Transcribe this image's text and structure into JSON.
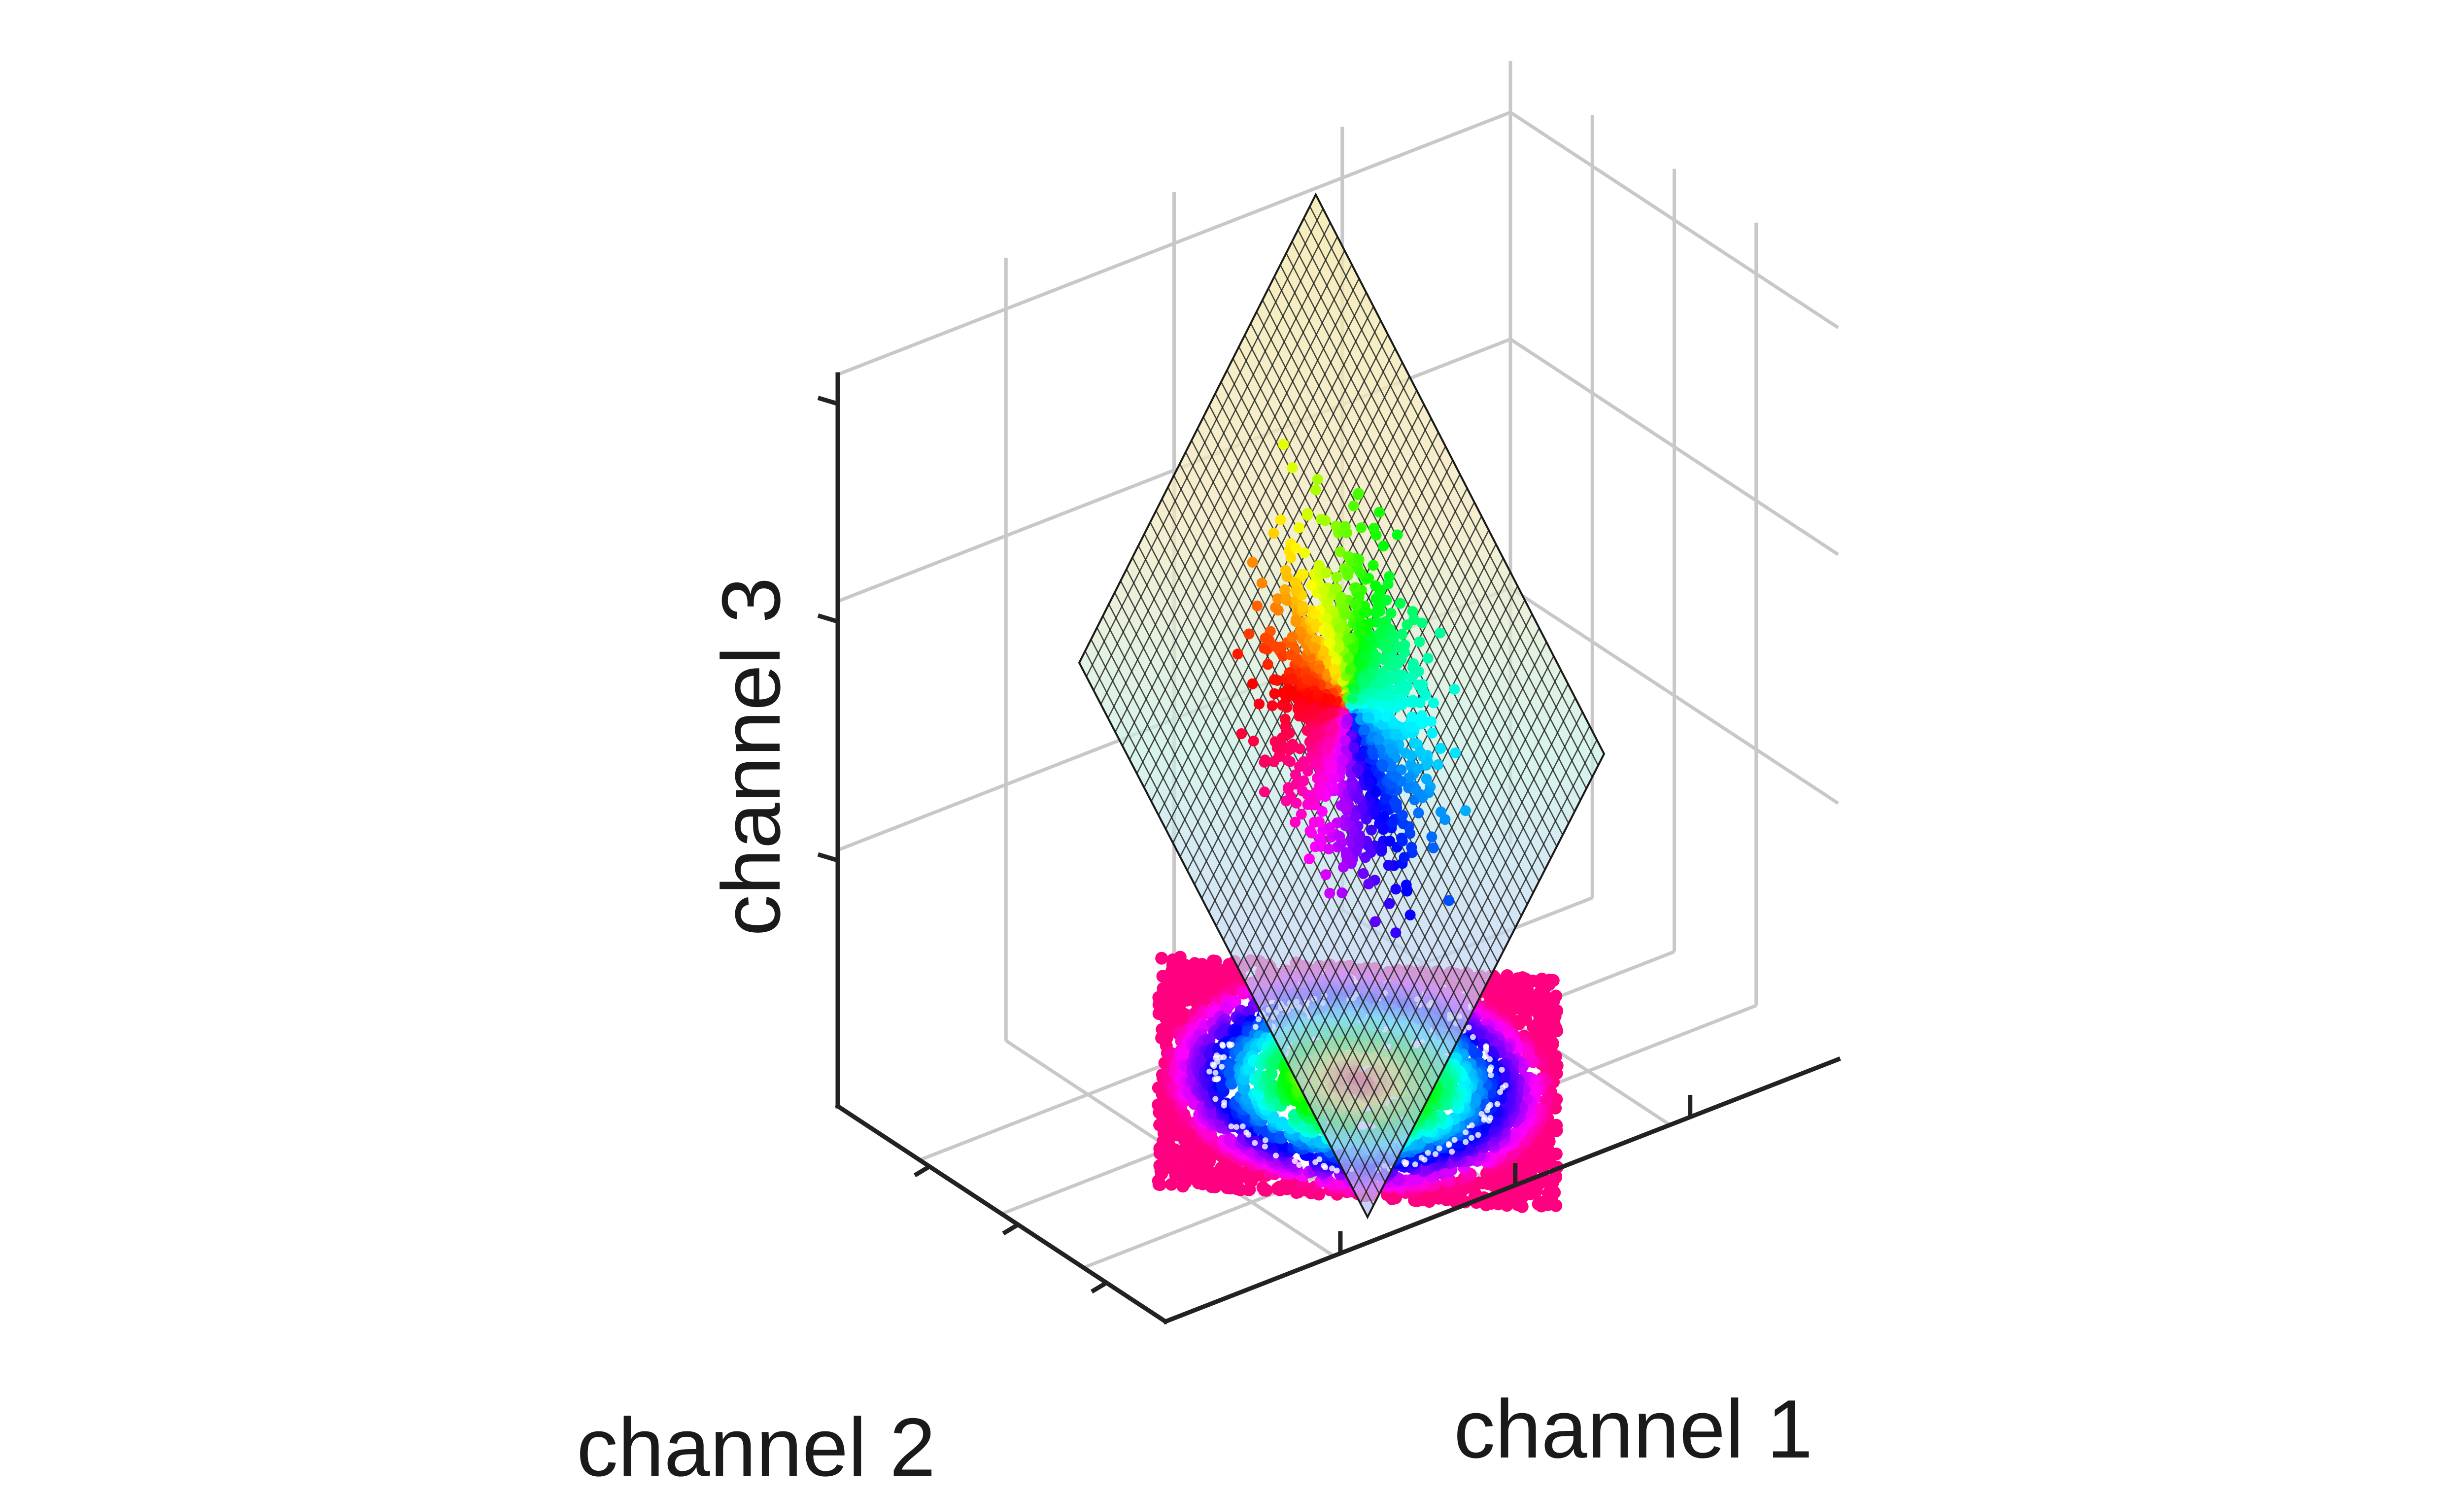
{
  "chart_data": {
    "type": "scatter",
    "title": "",
    "xlabel": "channel 1",
    "ylabel": "channel 2",
    "zlabel": "channel 3",
    "grid": true,
    "view": "3d",
    "elements": [
      {
        "name": "plane",
        "kind": "surface",
        "grid_lines": 40,
        "colormap": "parula-like pastel"
      },
      {
        "name": "scatter on plane",
        "kind": "scatter-3d",
        "color": "hue by angle",
        "count": 1400
      },
      {
        "name": "projection on floor",
        "kind": "scatter-2d",
        "color": "hue by radius",
        "count": 2600
      }
    ],
    "colors": {
      "plane_top": "#f3e6a8",
      "plane_mid": "#c5ecea",
      "plane_bottom": "#b9bff0"
    }
  }
}
